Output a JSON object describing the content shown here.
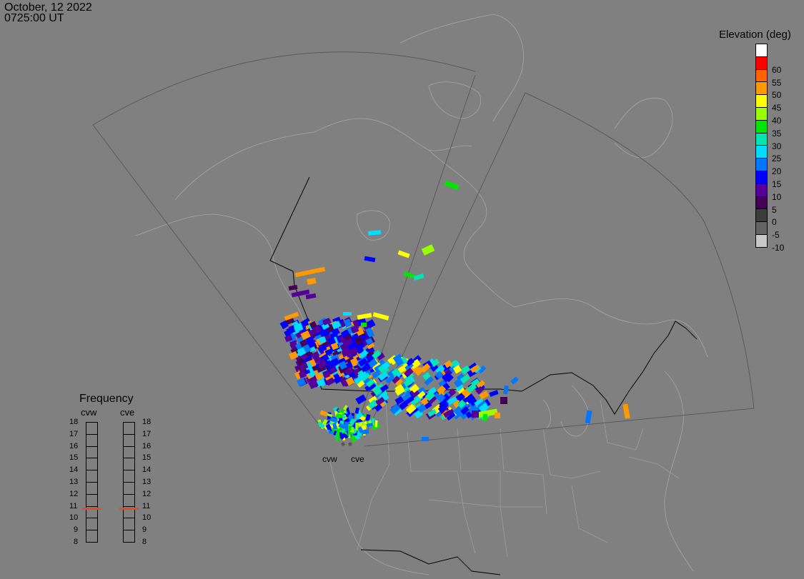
{
  "header": {
    "date": "October, 12 2022",
    "time": "0725:00 UT"
  },
  "colorbar": {
    "title": "Elevation (deg)",
    "levels": [
      {
        "label": "",
        "color": "#ffffff"
      },
      {
        "label": "60",
        "color": "#ff0000"
      },
      {
        "label": "55",
        "color": "#ff6400"
      },
      {
        "label": "50",
        "color": "#ff9900"
      },
      {
        "label": "45",
        "color": "#ffff00"
      },
      {
        "label": "40",
        "color": "#99ff00"
      },
      {
        "label": "35",
        "color": "#00e600"
      },
      {
        "label": "30",
        "color": "#00e6b3"
      },
      {
        "label": "25",
        "color": "#00ddff"
      },
      {
        "label": "20",
        "color": "#0077ff"
      },
      {
        "label": "15",
        "color": "#0000ff"
      },
      {
        "label": "10",
        "color": "#550099"
      },
      {
        "label": "5",
        "color": "#440055"
      },
      {
        "label": "0",
        "color": "#3c3c3c"
      },
      {
        "label": "-5",
        "color": "#646464"
      },
      {
        "label": "-10",
        "color": "#c8c8c8"
      }
    ]
  },
  "frequency": {
    "title": "Frequency",
    "radars": [
      "cvw",
      "cve"
    ],
    "labels": [
      "18",
      "17",
      "16",
      "15",
      "14",
      "13",
      "12",
      "11",
      "10",
      "9",
      "8"
    ],
    "selected": 10.8,
    "marker_color": "#e64c1e"
  },
  "radars": {
    "names": [
      "cvw",
      "cve"
    ]
  },
  "scatter_colors": {
    "v5": "#440055",
    "v10": "#550099",
    "v15": "#0000ff",
    "v20": "#0077ff",
    "v25": "#00ddff",
    "v30": "#00e6b3",
    "v35": "#00e600",
    "v40": "#99ff00",
    "v45": "#ffff00",
    "v50": "#ff9900"
  }
}
